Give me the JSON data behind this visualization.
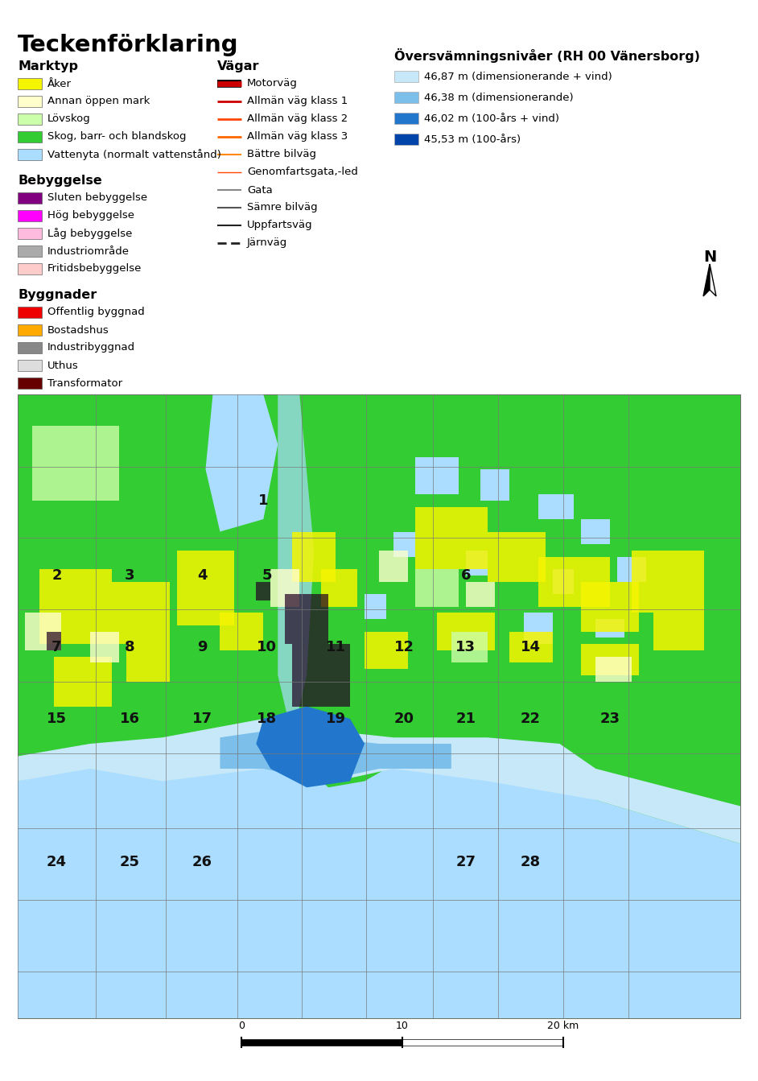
{
  "title": "Teckenförklaring",
  "marktyp_header": "Marktyp",
  "marktyp_items": [
    {
      "label": "Åker",
      "color": "#f5f500"
    },
    {
      "label": "Annan öppen mark",
      "color": "#ffffcc"
    },
    {
      "label": "Lövskog",
      "color": "#ccffaa"
    },
    {
      "label": "Skog, barr- och blandskog",
      "color": "#33cc33"
    },
    {
      "label": "Vattenyta (normalt vattenstånd)",
      "color": "#aaddff"
    }
  ],
  "bebyggelse_header": "Bebyggelse",
  "bebyggelse_items": [
    {
      "label": "Sluten bebyggelse",
      "color": "#800080"
    },
    {
      "label": "Hög bebyggelse",
      "color": "#ff00ff"
    },
    {
      "label": "Låg bebyggelse",
      "color": "#ffbbdd"
    },
    {
      "label": "Industriområde",
      "color": "#aaaaaa"
    },
    {
      "label": "Fritidsbebyggelse",
      "color": "#ffcccc"
    }
  ],
  "byggnader_header": "Byggnader",
  "byggnader_items": [
    {
      "label": "Offentlig byggnad",
      "color": "#ee0000"
    },
    {
      "label": "Bostadshus",
      "color": "#ffaa00"
    },
    {
      "label": "Industribyggnad",
      "color": "#888888"
    },
    {
      "label": "Uthus",
      "color": "#dddddd"
    },
    {
      "label": "Transformator",
      "color": "#660000"
    }
  ],
  "vagar_header": "Vägar",
  "vagar_items": [
    {
      "label": "Motorväg",
      "color": "#cc0000",
      "linewidth": 5,
      "style": "solid",
      "outline": true
    },
    {
      "label": "Allmän väg klass 1",
      "color": "#cc0000",
      "linewidth": 2,
      "style": "solid",
      "outline": false
    },
    {
      "label": "Allmän väg klass 2",
      "color": "#ff4400",
      "linewidth": 2,
      "style": "solid",
      "outline": false
    },
    {
      "label": "Allmän väg klass 3",
      "color": "#ff6600",
      "linewidth": 2,
      "style": "solid",
      "outline": false
    },
    {
      "label": "Bättre bilväg",
      "color": "#ff8800",
      "linewidth": 1.5,
      "style": "solid",
      "outline": false
    },
    {
      "label": "Genomfartsgata,-led",
      "color": "#ff4400",
      "linewidth": 1,
      "style": "solid",
      "outline": false
    },
    {
      "label": "Gata",
      "color": "#888888",
      "linewidth": 1.5,
      "style": "solid",
      "outline": false
    },
    {
      "label": "Sämre bilväg",
      "color": "#555555",
      "linewidth": 1.5,
      "style": "solid",
      "outline": false
    },
    {
      "label": "Uppfartsväg",
      "color": "#222222",
      "linewidth": 1.5,
      "style": "solid",
      "outline": false
    },
    {
      "label": "Järnväg",
      "color": "#222222",
      "linewidth": 2,
      "style": "dashed",
      "outline": false
    }
  ],
  "ovsvamning_header": "Översvämningsnivåer (RH 00 Vänersborg)",
  "ovsvamning_items": [
    {
      "label": "46,87 m (dimensionerande + vind)",
      "color": "#c6e8f8"
    },
    {
      "label": "46,38 m (dimensionerande)",
      "color": "#7bbfea"
    },
    {
      "label": "46,02 m (100-års + vind)",
      "color": "#2277cc"
    },
    {
      "label": "45,53 m (100-års)",
      "color": "#0044aa"
    }
  ],
  "background_color": "#ffffff",
  "map_bg": "#33cc33",
  "water_color": "#aaddff",
  "flood_colors": [
    "#c6e8f8",
    "#7bbfea",
    "#2277cc"
  ],
  "yellow_color": "#f5f500",
  "light_yellow_color": "#ffffcc",
  "light_green_color": "#ccffaa"
}
